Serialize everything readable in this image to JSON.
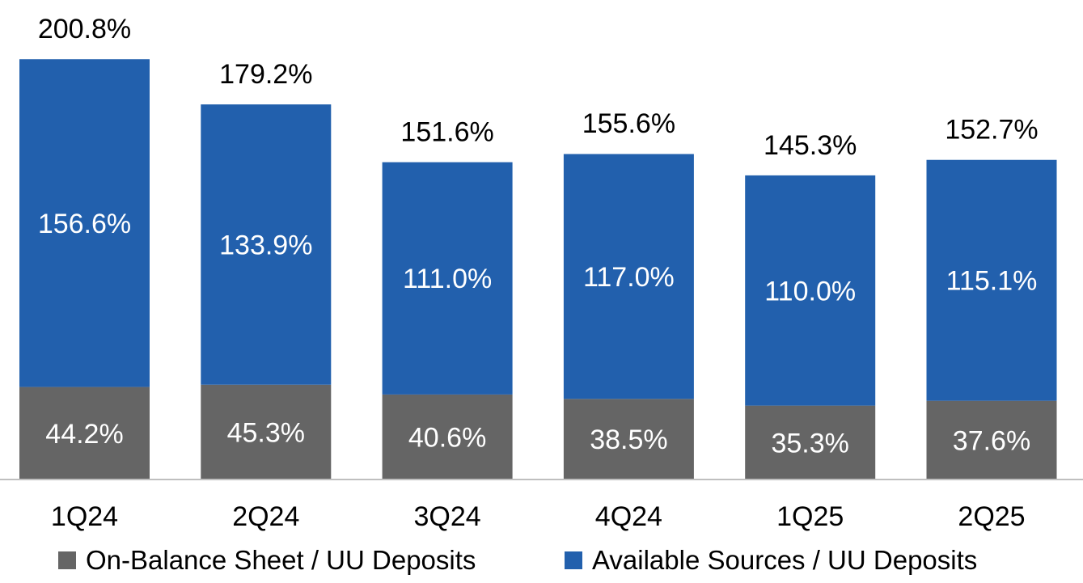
{
  "chart_data": {
    "type": "bar",
    "stacked": true,
    "categories": [
      "1Q24",
      "2Q24",
      "3Q24",
      "4Q24",
      "1Q25",
      "2Q25"
    ],
    "series": [
      {
        "name": "On-Balance Sheet / UU Deposits",
        "color": "#656565",
        "values": [
          44.2,
          45.3,
          40.6,
          38.5,
          35.3,
          37.6
        ],
        "labels": [
          "44.2%",
          "45.3%",
          "40.6%",
          "38.5%",
          "35.3%",
          "37.6%"
        ]
      },
      {
        "name": "Available Sources / UU Deposits",
        "color": "#2260AD",
        "values": [
          156.6,
          133.9,
          111.0,
          117.0,
          110.0,
          115.1
        ],
        "labels": [
          "156.6%",
          "133.9%",
          "111.0%",
          "117.0%",
          "110.0%",
          "115.1%"
        ]
      }
    ],
    "totals": [
      200.8,
      179.2,
      151.6,
      155.6,
      145.3,
      152.7
    ],
    "total_labels": [
      "200.8%",
      "179.2%",
      "151.6%",
      "155.6%",
      "145.3%",
      "152.7%"
    ],
    "title": "",
    "xlabel": "",
    "ylabel": "",
    "ylim": [
      0,
      220
    ],
    "grid": false,
    "legend_position": "bottom",
    "axis_color": "#BFBFBF",
    "label_color_inside": "#FFFFFF",
    "label_color_total": "#000000"
  }
}
